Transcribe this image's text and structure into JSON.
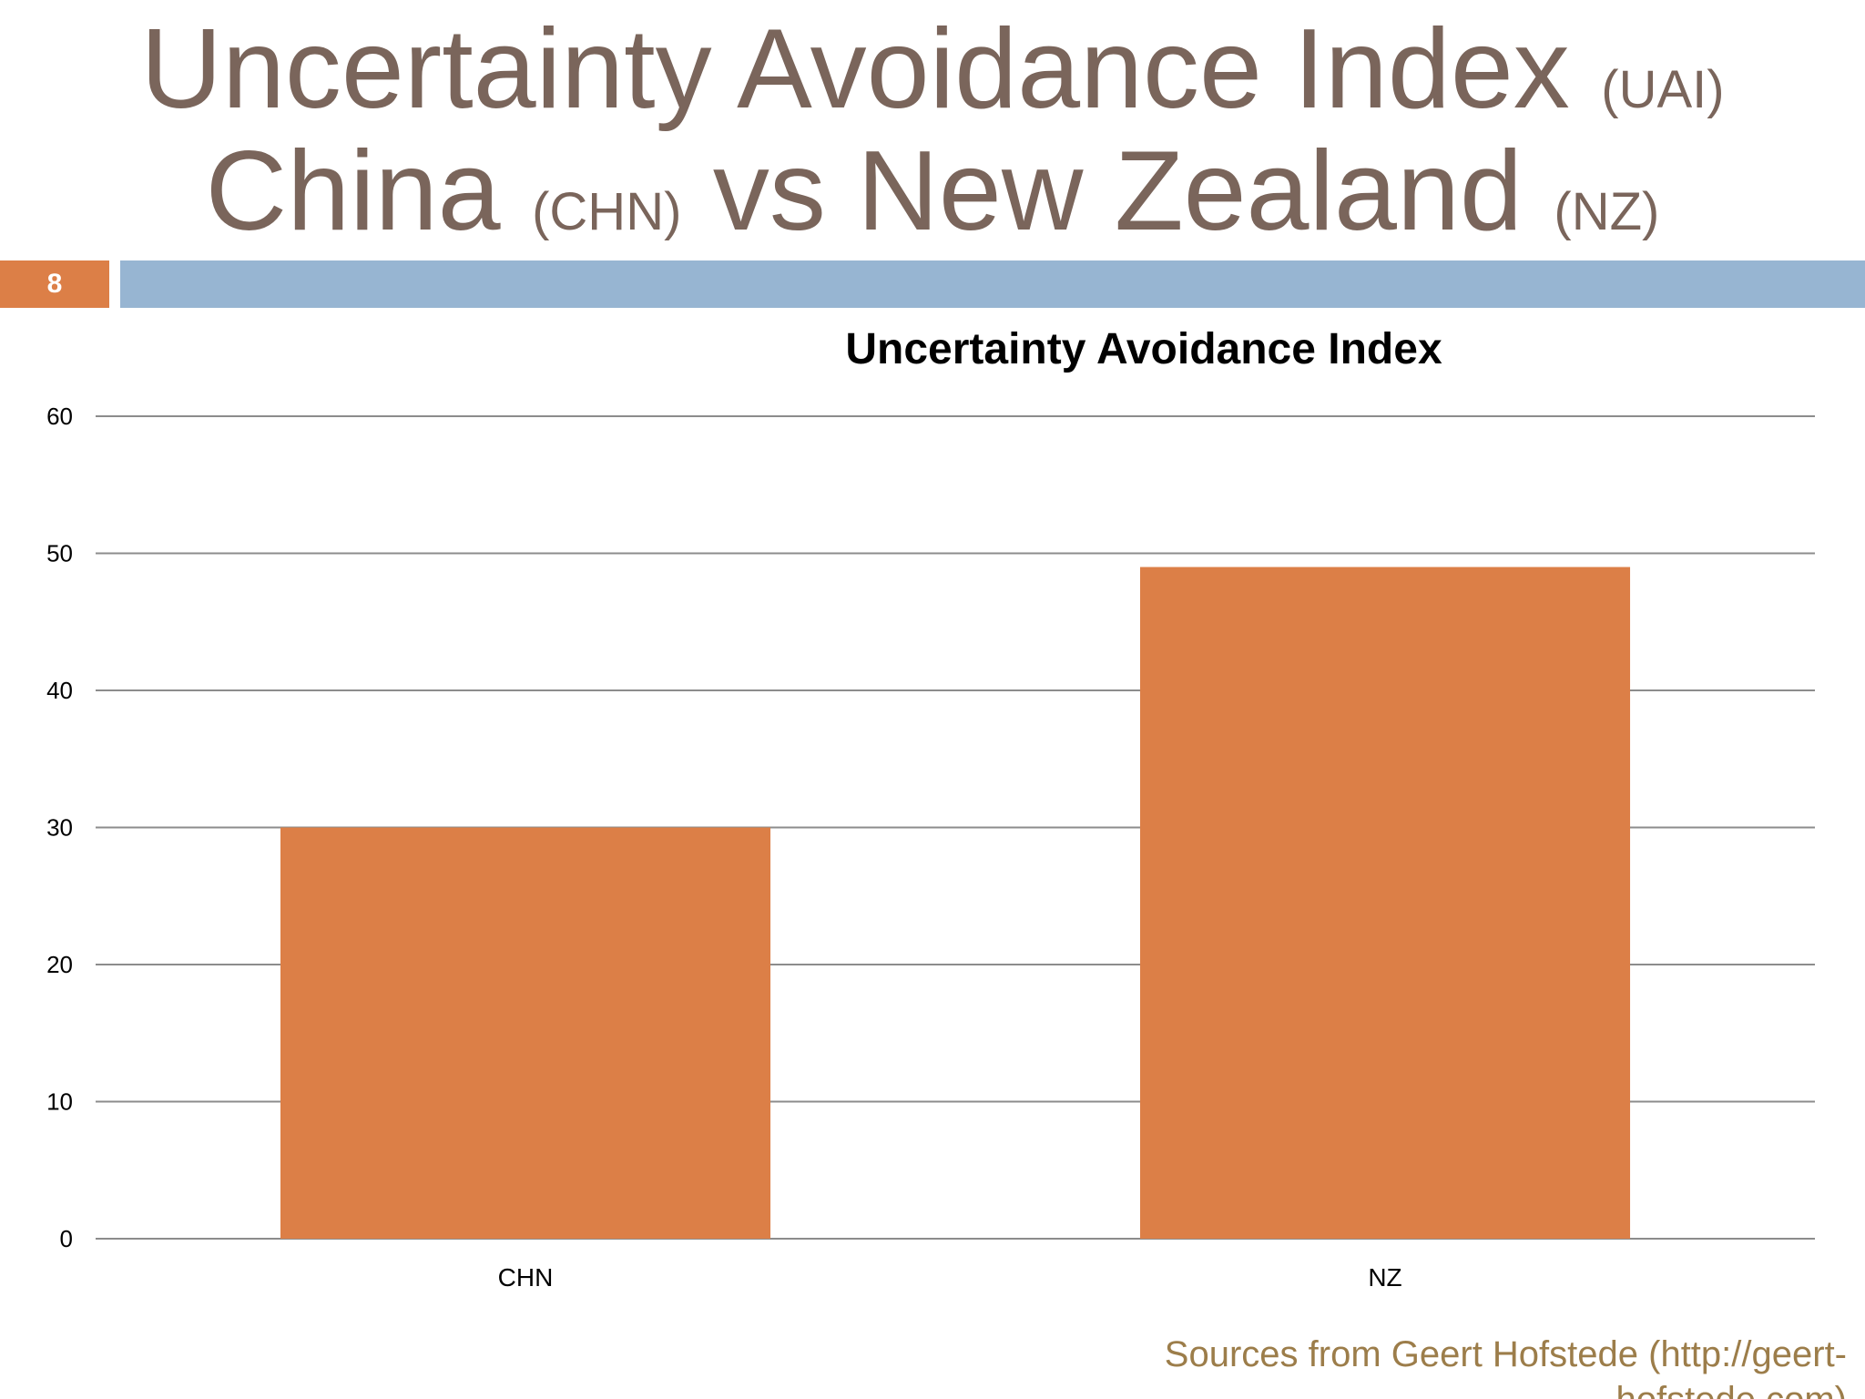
{
  "slide": {
    "title_line1_main": "Uncertainty Avoidance Index",
    "title_line1_abbr": "(UAI)",
    "title_line2_part1": "China",
    "title_line2_abbr1": "(CHN)",
    "title_line2_part2": "vs New Zealand",
    "title_line2_abbr2": "(NZ)",
    "number": "8",
    "source_note": "Sources from Geert Hofstede (http://geert-hofstede.com)"
  },
  "colors": {
    "title": "#7a655b",
    "accent": "#dc7f47",
    "header_bar": "#97b5d2",
    "bar": "#dc7f47",
    "source": "#9c7d4a"
  },
  "chart_data": {
    "type": "bar",
    "title": "Uncertainty Avoidance Index",
    "categories": [
      "CHN",
      "NZ"
    ],
    "values": [
      30,
      49
    ],
    "xlabel": "",
    "ylabel": "",
    "ylim": [
      0,
      60
    ],
    "yticks": [
      0,
      10,
      20,
      30,
      40,
      50,
      60
    ],
    "grid": true,
    "legend": "none"
  }
}
